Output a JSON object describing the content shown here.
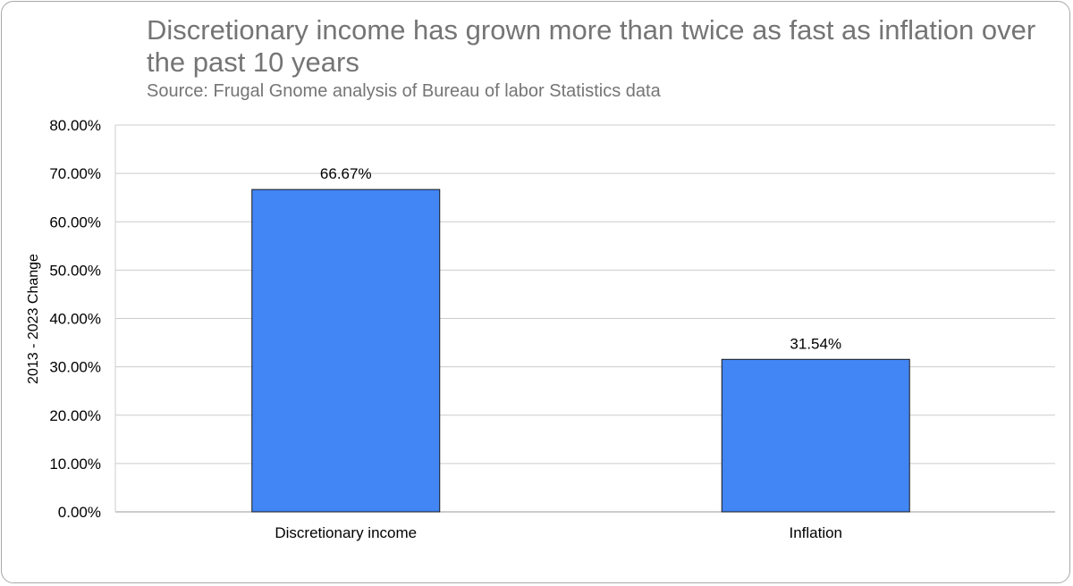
{
  "chart_data": {
    "type": "bar",
    "title": "Discretionary income has grown more than twice as fast as inflation over the past 10 years",
    "subtitle": "Source: Frugal Gnome analysis of Bureau of labor Statistics data",
    "xlabel": "",
    "ylabel": "2013 - 2023 Change",
    "categories": [
      "Discretionary income",
      "Inflation"
    ],
    "values": [
      66.67,
      31.54
    ],
    "data_labels": [
      "66.67%",
      "31.54%"
    ],
    "ylim": [
      0,
      80
    ],
    "yticks": [
      0,
      10,
      20,
      30,
      40,
      50,
      60,
      70,
      80
    ],
    "ytick_labels": [
      "0.00%",
      "10.00%",
      "20.00%",
      "30.00%",
      "40.00%",
      "50.00%",
      "60.00%",
      "70.00%",
      "80.00%"
    ],
    "grid": true,
    "bar_color": "#4285f4"
  }
}
